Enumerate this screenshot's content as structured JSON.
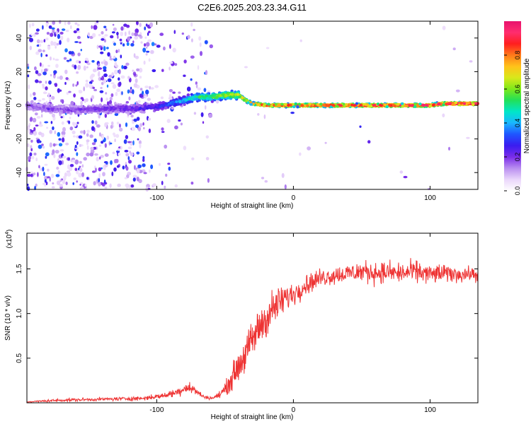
{
  "title": "C2E6.2025.203.23.34.G11",
  "chart_data": [
    {
      "type": "heatmap",
      "xlabel": "Height of straight line (km)",
      "ylabel": "Frequency (Hz)",
      "xlim": [
        -195,
        135
      ],
      "ylim": [
        -50,
        50
      ],
      "xticks": [
        -100,
        0,
        100
      ],
      "yticks": [
        -40,
        -20,
        0,
        20,
        40
      ],
      "colorbar": {
        "label": "Normalized spectral amplitude",
        "range": [
          0,
          1
        ],
        "ticks": [
          "0.0",
          "0.2",
          "0.4",
          "0.6",
          "0.8"
        ],
        "colors": [
          "#ffffff",
          "#ead6fb",
          "#b98ef0",
          "#7a2ce8",
          "#3a1cf0",
          "#1f55ff",
          "#1ab6ff",
          "#00e6c8",
          "#21e05a",
          "#7de81b",
          "#d8e81b",
          "#ffc21a",
          "#ff7a1a",
          "#ff1f1f",
          "#ff2d6e",
          "#e8126d"
        ]
      },
      "frequency_track": {
        "x": [
          -195,
          -180,
          -160,
          -140,
          -120,
          -100,
          -90,
          -80,
          -70,
          -60,
          -50,
          -40,
          -35,
          -30,
          -20,
          0,
          20,
          40,
          60,
          80,
          100,
          110,
          135
        ],
        "hz": [
          0,
          -2,
          -3,
          -2,
          -2,
          -1,
          1,
          3,
          5,
          5,
          6,
          6,
          3,
          1,
          0,
          0,
          0,
          0,
          0,
          0,
          0,
          1,
          1
        ],
        "amp": [
          0.18,
          0.2,
          0.2,
          0.22,
          0.24,
          0.28,
          0.36,
          0.45,
          0.55,
          0.6,
          0.68,
          0.72,
          0.78,
          0.82,
          0.86,
          0.9,
          0.92,
          0.94,
          0.95,
          0.95,
          0.95,
          0.97,
          0.97
        ]
      }
    },
    {
      "type": "line",
      "xlabel": "Height of straight line (km)",
      "ylabel": "SNR (10 * v/v)",
      "y_multiplier": "(x10",
      "y_multiplier_exp": "4",
      "y_multiplier_close": ")",
      "xlim": [
        -195,
        135
      ],
      "ylim": [
        0,
        1.9
      ],
      "xticks": [
        -100,
        0,
        100
      ],
      "yticks": [
        "0.5",
        "1.0",
        "1.5"
      ],
      "series": [
        {
          "color": "#ee3333",
          "x": [
            -195,
            -170,
            -140,
            -110,
            -95,
            -85,
            -78,
            -72,
            -66,
            -60,
            -55,
            -50,
            -45,
            -40,
            -35,
            -30,
            -25,
            -20,
            -15,
            -10,
            -5,
            0,
            5,
            10,
            20,
            30,
            40,
            50,
            60,
            70,
            80,
            90,
            100,
            110,
            120,
            135
          ],
          "y": [
            0.01,
            0.03,
            0.04,
            0.05,
            0.08,
            0.12,
            0.18,
            0.14,
            0.07,
            0.05,
            0.08,
            0.15,
            0.28,
            0.42,
            0.55,
            0.7,
            0.85,
            0.95,
            1.05,
            1.12,
            1.18,
            1.22,
            1.28,
            1.33,
            1.4,
            1.43,
            1.45,
            1.47,
            1.46,
            1.46,
            1.45,
            1.47,
            1.44,
            1.45,
            1.44,
            1.44
          ],
          "spread": [
            0.01,
            0.03,
            0.03,
            0.04,
            0.05,
            0.08,
            0.12,
            0.08,
            0.03,
            0.03,
            0.05,
            0.12,
            0.22,
            0.3,
            0.32,
            0.36,
            0.38,
            0.38,
            0.34,
            0.3,
            0.26,
            0.22,
            0.2,
            0.18,
            0.17,
            0.17,
            0.18,
            0.2,
            0.2,
            0.2,
            0.2,
            0.2,
            0.18,
            0.17,
            0.14,
            0.13
          ]
        }
      ]
    }
  ]
}
